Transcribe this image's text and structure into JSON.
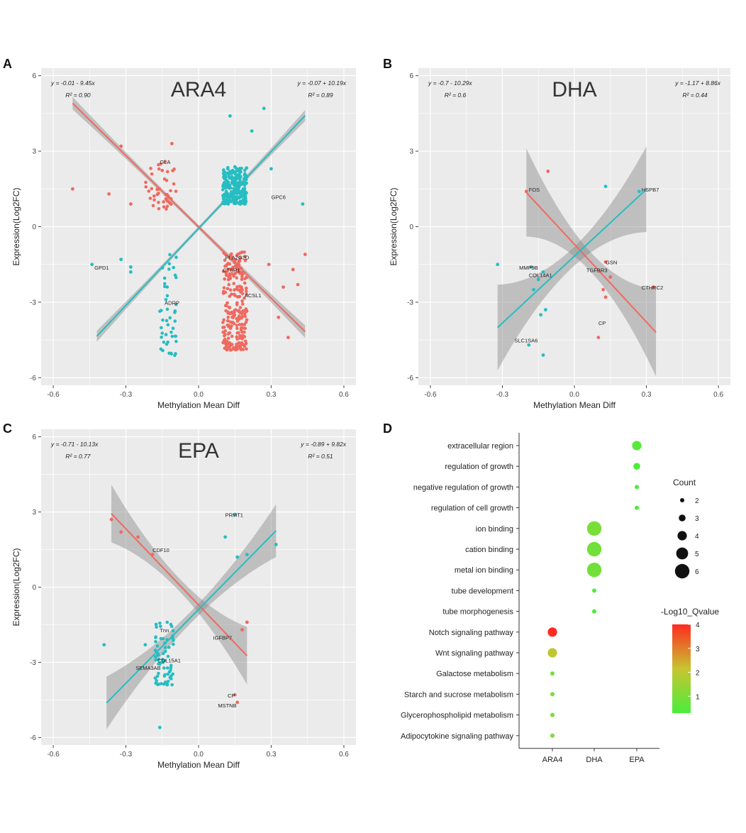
{
  "colors": {
    "panel_bg": "#ebebeb",
    "grid": "#ffffff",
    "red": "#f0695f",
    "cyan": "#26bdc2",
    "ribbon": "#8a8a8a",
    "gradient_low": "#49ee3c",
    "gradient_high": "#ff2a20"
  },
  "chart_data": [
    {
      "panel": "A",
      "type": "scatter",
      "title": "ARA4",
      "xlabel": "Methylation Mean Diff",
      "ylabel": "Expression(Log2FC)",
      "xlim": [
        -0.65,
        0.65
      ],
      "ylim": [
        -6.3,
        6.3
      ],
      "x_ticks": [
        -0.6,
        -0.3,
        0.0,
        0.3,
        0.6
      ],
      "x_tick_labels": [
        "-0.6",
        "-0.3",
        "0.0",
        "0.3",
        "0.6"
      ],
      "y_ticks": [
        -6,
        -3,
        0,
        3,
        6
      ],
      "y_tick_labels": [
        "-6",
        "-3",
        "0",
        "3",
        "6"
      ],
      "grid": true,
      "equations": {
        "left": {
          "line1": "y = -0.01 - 9.45x",
          "line2": "R² = 0.90"
        },
        "right": {
          "line1": "y = -0.07 + 10.19x",
          "line2": "R² = 0.89"
        }
      },
      "fits": [
        {
          "color": "red",
          "x_range": [
            -0.52,
            0.44
          ],
          "intercept": -0.01,
          "slope": -9.45,
          "band": 0.25
        },
        {
          "color": "cyan",
          "x_range": [
            -0.42,
            0.44
          ],
          "intercept": -0.07,
          "slope": 10.19,
          "band": 0.22
        }
      ],
      "clusters": [
        {
          "color": "red",
          "n": 45,
          "x": [
            -0.22,
            -0.09
          ],
          "y": [
            0.7,
            2.6
          ]
        },
        {
          "color": "red",
          "n": 240,
          "x": [
            0.1,
            0.2
          ],
          "y": [
            -4.9,
            -1.0
          ]
        },
        {
          "color": "cyan",
          "n": 240,
          "x": [
            0.1,
            0.2
          ],
          "y": [
            0.9,
            2.4
          ]
        },
        {
          "color": "cyan",
          "n": 45,
          "x": [
            -0.16,
            -0.09
          ],
          "y": [
            -5.2,
            -0.9
          ]
        }
      ],
      "points": [
        {
          "x": -0.52,
          "y": 1.5,
          "color": "red"
        },
        {
          "x": -0.37,
          "y": 1.3,
          "color": "red"
        },
        {
          "x": -0.32,
          "y": 3.2,
          "color": "red"
        },
        {
          "x": -0.28,
          "y": 0.9,
          "color": "red"
        },
        {
          "x": -0.11,
          "y": 3.3,
          "color": "red"
        },
        {
          "x": 0.29,
          "y": -1.5,
          "color": "red"
        },
        {
          "x": 0.35,
          "y": -2.4,
          "color": "red"
        },
        {
          "x": 0.37,
          "y": -4.4,
          "color": "red"
        },
        {
          "x": 0.39,
          "y": -1.7,
          "color": "red"
        },
        {
          "x": 0.44,
          "y": -1.1,
          "color": "red"
        },
        {
          "x": 0.41,
          "y": -2.3,
          "color": "red"
        },
        {
          "x": 0.33,
          "y": -3.6,
          "color": "red"
        },
        {
          "x": 0.13,
          "y": 4.4,
          "color": "cyan"
        },
        {
          "x": 0.27,
          "y": 4.7,
          "color": "cyan"
        },
        {
          "x": 0.22,
          "y": 3.8,
          "color": "cyan"
        },
        {
          "x": 0.43,
          "y": 0.9,
          "color": "cyan"
        },
        {
          "x": 0.3,
          "y": 2.3,
          "color": "cyan"
        },
        {
          "x": -0.32,
          "y": -1.3,
          "color": "cyan"
        },
        {
          "x": -0.28,
          "y": -1.6,
          "color": "cyan"
        },
        {
          "x": -0.44,
          "y": -1.5,
          "color": "cyan"
        },
        {
          "x": -0.28,
          "y": -1.8,
          "color": "cyan"
        }
      ],
      "labels": [
        {
          "text": "GLA",
          "x": -0.16,
          "y": 2.5
        },
        {
          "text": "GPC6",
          "x": 0.3,
          "y": 1.1
        },
        {
          "text": "GPD1",
          "x": -0.43,
          "y": -1.7
        },
        {
          "text": "PLA2G2D",
          "x": 0.11,
          "y": -1.3
        },
        {
          "text": "CTSR1",
          "x": 0.1,
          "y": -1.8
        },
        {
          "text": "ADRP",
          "x": -0.14,
          "y": -3.1
        },
        {
          "text": "ACSL1",
          "x": 0.19,
          "y": -2.8
        }
      ]
    },
    {
      "panel": "B",
      "type": "scatter",
      "title": "DHA",
      "xlabel": "Methylation Mean Diff",
      "ylabel": "Expression(Log2FC)",
      "xlim": [
        -0.65,
        0.65
      ],
      "ylim": [
        -6.3,
        6.3
      ],
      "x_ticks": [
        -0.6,
        -0.3,
        0.0,
        0.3,
        0.6
      ],
      "x_tick_labels": [
        "-0.6",
        "-0.3",
        "0.0",
        "0.3",
        "0.6"
      ],
      "y_ticks": [
        -6,
        -3,
        0,
        3,
        6
      ],
      "y_tick_labels": [
        "-6",
        "-3",
        "0",
        "3",
        "6"
      ],
      "grid": true,
      "equations": {
        "left": {
          "line1": "y = -0.7 - 10.29x",
          "line2": "R² = 0.6"
        },
        "right": {
          "line1": "y = -1.17 + 8.86x",
          "line2": "R² = 0.44"
        }
      },
      "fits": [
        {
          "color": "red",
          "x_range": [
            -0.2,
            0.34
          ],
          "intercept": -0.7,
          "slope": -10.29,
          "band_mode": "flare",
          "band": 1.75
        },
        {
          "color": "cyan",
          "x_range": [
            -0.32,
            0.3
          ],
          "intercept": -1.17,
          "slope": 8.86,
          "band_mode": "flare",
          "band": 1.7
        }
      ],
      "clusters": [],
      "points": [
        {
          "x": -0.2,
          "y": 1.4,
          "color": "red"
        },
        {
          "x": -0.11,
          "y": 2.2,
          "color": "red"
        },
        {
          "x": 0.13,
          "y": -1.4,
          "color": "red"
        },
        {
          "x": 0.15,
          "y": -2.0,
          "color": "red"
        },
        {
          "x": 0.12,
          "y": -2.5,
          "color": "red"
        },
        {
          "x": 0.13,
          "y": -2.8,
          "color": "red"
        },
        {
          "x": 0.1,
          "y": -4.4,
          "color": "red"
        },
        {
          "x": 0.33,
          "y": -2.4,
          "color": "red"
        },
        {
          "x": 0.27,
          "y": 1.4,
          "color": "cyan"
        },
        {
          "x": 0.13,
          "y": 1.6,
          "color": "cyan"
        },
        {
          "x": -0.32,
          "y": -1.5,
          "color": "cyan"
        },
        {
          "x": -0.18,
          "y": -1.6,
          "color": "cyan"
        },
        {
          "x": -0.17,
          "y": -2.5,
          "color": "cyan"
        },
        {
          "x": -0.15,
          "y": -2.1,
          "color": "cyan"
        },
        {
          "x": -0.13,
          "y": -1.8,
          "color": "cyan"
        },
        {
          "x": -0.14,
          "y": -3.5,
          "color": "cyan"
        },
        {
          "x": -0.12,
          "y": -3.3,
          "color": "cyan"
        },
        {
          "x": -0.13,
          "y": -5.1,
          "color": "cyan"
        },
        {
          "x": -0.19,
          "y": -4.7,
          "color": "cyan"
        }
      ],
      "labels": [
        {
          "text": "FOS",
          "x": -0.19,
          "y": 1.4
        },
        {
          "text": "HSPB7",
          "x": 0.28,
          "y": 1.4
        },
        {
          "text": "MMP9B",
          "x": -0.23,
          "y": -1.7
        },
        {
          "text": "COL14A1",
          "x": -0.19,
          "y": -2.0
        },
        {
          "text": "TGFBR3",
          "x": 0.05,
          "y": -1.8
        },
        {
          "text": "GSN",
          "x": 0.13,
          "y": -1.5
        },
        {
          "text": "CTHRC2",
          "x": 0.28,
          "y": -2.5
        },
        {
          "text": "CP",
          "x": 0.1,
          "y": -3.9
        },
        {
          "text": "SLC1SA6",
          "x": -0.25,
          "y": -4.6
        }
      ]
    },
    {
      "panel": "C",
      "type": "scatter",
      "title": "EPA",
      "xlabel": "Methylation Mean Diff",
      "ylabel": "Expression(Log2FC)",
      "xlim": [
        -0.65,
        0.65
      ],
      "ylim": [
        -6.3,
        6.3
      ],
      "x_ticks": [
        -0.6,
        -0.3,
        0.0,
        0.3,
        0.6
      ],
      "x_tick_labels": [
        "-0.6",
        "-0.3",
        "0.0",
        "0.3",
        "0.6"
      ],
      "y_ticks": [
        -6,
        -3,
        0,
        3,
        6
      ],
      "y_tick_labels": [
        "-6",
        "-3",
        "0",
        "3",
        "6"
      ],
      "grid": true,
      "equations": {
        "left": {
          "line1": "y = -0.71 - 10.13x",
          "line2": "R² = 0.77"
        },
        "right": {
          "line1": "y = -0.89 + 9.82x",
          "line2": "R² = 0.51"
        }
      },
      "fits": [
        {
          "color": "red",
          "x_range": [
            -0.36,
            0.2
          ],
          "intercept": -0.71,
          "slope": -10.13,
          "band_mode": "flare",
          "band": 1.15
        },
        {
          "color": "cyan",
          "x_range": [
            -0.38,
            0.32
          ],
          "intercept": -0.89,
          "slope": 9.82,
          "band_mode": "flare",
          "band": 1.05
        }
      ],
      "clusters": [
        {
          "color": "cyan",
          "n": 70,
          "x": [
            -0.18,
            -0.1
          ],
          "y": [
            -3.9,
            -1.3
          ]
        }
      ],
      "points": [
        {
          "x": -0.36,
          "y": 2.7,
          "color": "red"
        },
        {
          "x": -0.32,
          "y": 2.2,
          "color": "red"
        },
        {
          "x": -0.25,
          "y": 2.0,
          "color": "red"
        },
        {
          "x": -0.19,
          "y": 1.3,
          "color": "red"
        },
        {
          "x": 0.2,
          "y": -1.4,
          "color": "red"
        },
        {
          "x": 0.18,
          "y": -1.7,
          "color": "red"
        },
        {
          "x": 0.15,
          "y": -4.3,
          "color": "red"
        },
        {
          "x": 0.16,
          "y": -4.6,
          "color": "red"
        },
        {
          "x": 0.15,
          "y": 2.9,
          "color": "cyan"
        },
        {
          "x": 0.11,
          "y": 2.0,
          "color": "cyan"
        },
        {
          "x": 0.16,
          "y": 1.2,
          "color": "cyan"
        },
        {
          "x": 0.2,
          "y": 1.3,
          "color": "cyan"
        },
        {
          "x": 0.32,
          "y": 1.7,
          "color": "cyan"
        },
        {
          "x": -0.39,
          "y": -2.3,
          "color": "cyan"
        },
        {
          "x": -0.16,
          "y": -5.6,
          "color": "cyan"
        },
        {
          "x": -0.22,
          "y": -2.3,
          "color": "cyan"
        }
      ],
      "labels": [
        {
          "text": "PRMT1",
          "x": 0.11,
          "y": 2.8
        },
        {
          "text": "CDF10",
          "x": -0.19,
          "y": 1.4
        },
        {
          "text": "Tnn",
          "x": -0.16,
          "y": -1.8
        },
        {
          "text": "IGFBP7",
          "x": 0.06,
          "y": -2.1
        },
        {
          "text": "COL15A1",
          "x": -0.17,
          "y": -3.0
        },
        {
          "text": "SEMA3AB",
          "x": -0.26,
          "y": -3.3
        },
        {
          "text": "CP",
          "x": 0.12,
          "y": -4.4
        },
        {
          "text": "MSTNB",
          "x": 0.08,
          "y": -4.8
        }
      ]
    },
    {
      "panel": "D",
      "type": "scatter",
      "subtype": "dotplot",
      "columns": [
        "ARA4",
        "DHA",
        "EPA"
      ],
      "terms": [
        "extracellular region",
        "regulation of growth",
        "negative regulation of growth",
        "regulation of cell growth",
        "ion binding",
        "cation binding",
        "metal ion binding",
        "tube development",
        "tube morphogenesis",
        "Notch signaling pathway",
        "Wnt signaling pathway",
        "Galactose metabolism",
        "Starch and sucrose metabolism",
        "Glycerophospholipid metabolism",
        "Adipocytokine signaling pathway"
      ],
      "dots": [
        {
          "term": "extracellular region",
          "column": "EPA",
          "count": 4,
          "qvalue": 0.5
        },
        {
          "term": "regulation of growth",
          "column": "EPA",
          "count": 3,
          "qvalue": 0.4
        },
        {
          "term": "negative regulation of growth",
          "column": "EPA",
          "count": 2,
          "qvalue": 0.3
        },
        {
          "term": "regulation of cell growth",
          "column": "EPA",
          "count": 2,
          "qvalue": 0.3
        },
        {
          "term": "ion binding",
          "column": "DHA",
          "count": 6,
          "qvalue": 1.0
        },
        {
          "term": "cation binding",
          "column": "DHA",
          "count": 6,
          "qvalue": 0.9
        },
        {
          "term": "metal ion binding",
          "column": "DHA",
          "count": 6,
          "qvalue": 0.9
        },
        {
          "term": "tube development",
          "column": "DHA",
          "count": 2,
          "qvalue": 0.3
        },
        {
          "term": "tube morphogenesis",
          "column": "DHA",
          "count": 2,
          "qvalue": 0.3
        },
        {
          "term": "Notch signaling pathway",
          "column": "ARA4",
          "count": 4,
          "qvalue": 4.0
        },
        {
          "term": "Wnt signaling pathway",
          "column": "ARA4",
          "count": 4,
          "qvalue": 2.0
        },
        {
          "term": "Galactose metabolism",
          "column": "ARA4",
          "count": 2,
          "qvalue": 1.0
        },
        {
          "term": "Starch and sucrose metabolism",
          "column": "ARA4",
          "count": 2,
          "qvalue": 1.0
        },
        {
          "term": "Glycerophospholipid metabolism",
          "column": "ARA4",
          "count": 2,
          "qvalue": 1.0
        },
        {
          "term": "Adipocytokine signaling pathway",
          "column": "ARA4",
          "count": 2,
          "qvalue": 1.0
        }
      ],
      "legend_count": {
        "title": "Count",
        "values": [
          2,
          3,
          4,
          5,
          6
        ],
        "labels": [
          "2",
          "3",
          "4",
          "5",
          "6"
        ]
      },
      "legend_color": {
        "title": "-Log10_Qvalue",
        "min": 0.3,
        "max": 4.0,
        "ticks": [
          1,
          2,
          3,
          4
        ],
        "tick_labels": [
          "1",
          "2",
          "3",
          "4"
        ]
      }
    }
  ]
}
